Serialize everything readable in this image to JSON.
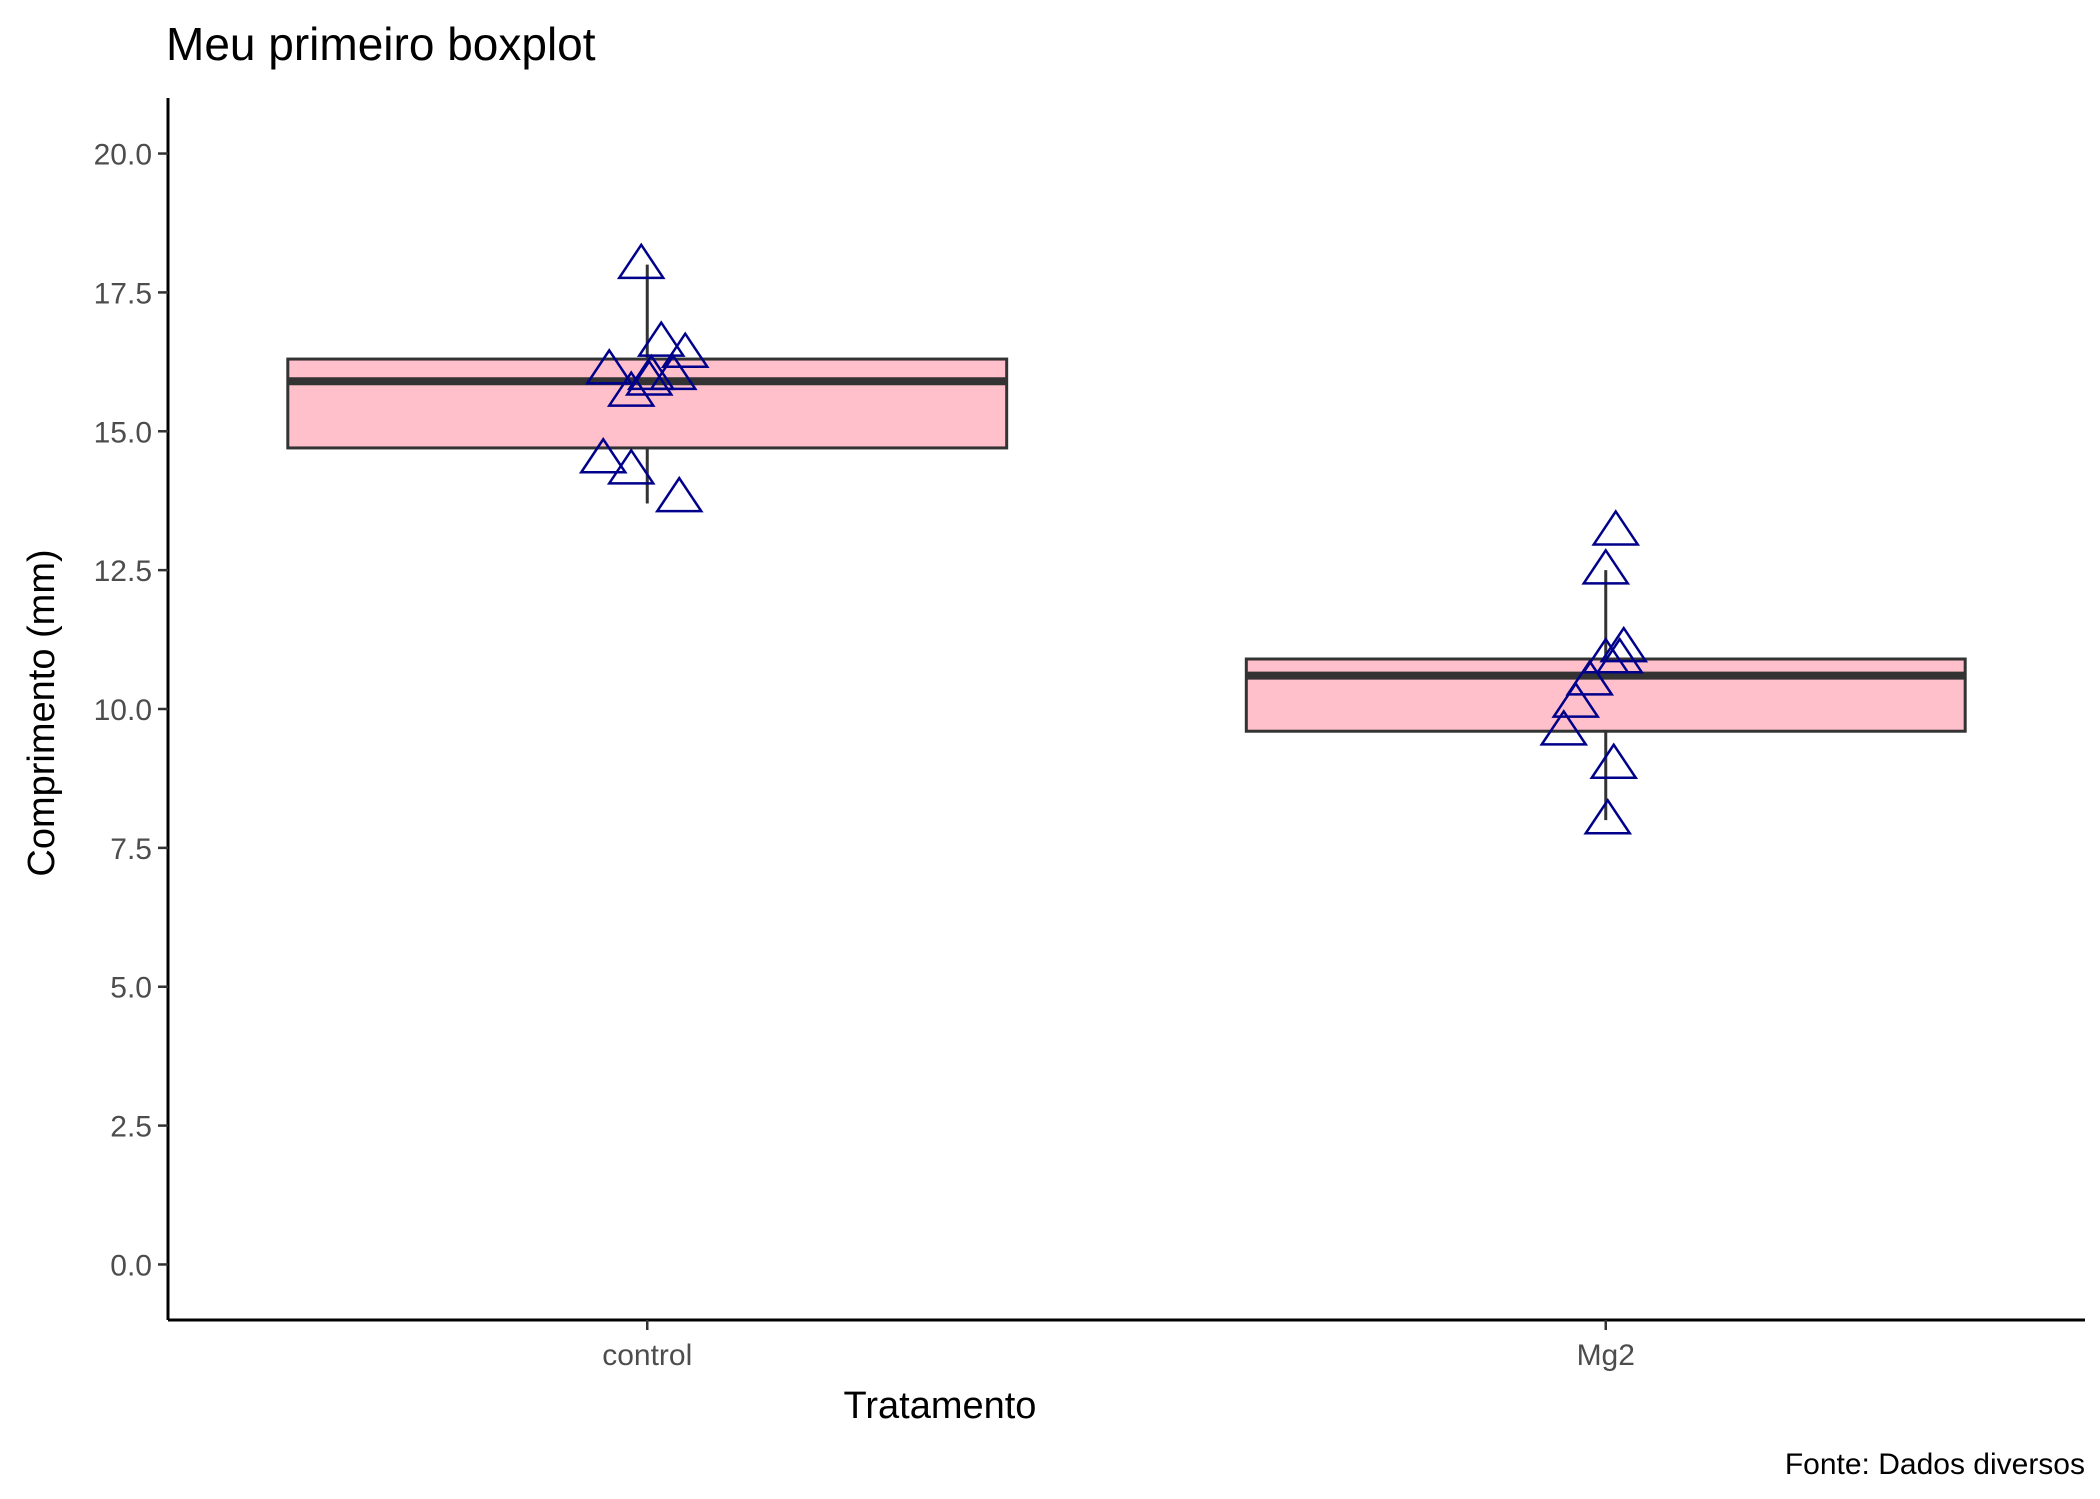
{
  "chart_data": {
    "type": "boxplot",
    "title": "Meu primeiro boxplot",
    "xlabel": "Tratamento",
    "ylabel": "Comprimento (mm)",
    "caption": "Fonte: Dados diversos",
    "ylim": [
      -1.0,
      21.0
    ],
    "yticks": [
      0.0,
      2.5,
      5.0,
      7.5,
      10.0,
      12.5,
      15.0,
      17.5,
      20.0
    ],
    "ytick_labels": [
      "0.0",
      "2.5",
      "5.0",
      "7.5",
      "10.0",
      "12.5",
      "15.0",
      "17.5",
      "20.0"
    ],
    "categories": [
      "control",
      "Mg2"
    ],
    "grid": false,
    "colors": {
      "box_fill": "#ffc0cb",
      "box_line": "#333333",
      "points": "#00008b"
    },
    "boxes": [
      {
        "category": "control",
        "min": 13.7,
        "q1": 14.7,
        "median": 15.9,
        "q3": 16.3,
        "max": 18.0
      },
      {
        "category": "Mg2",
        "min": 8.0,
        "q1": 9.6,
        "median": 10.6,
        "q3": 10.9,
        "max": 12.5
      }
    ],
    "points": [
      {
        "category": "control",
        "y": [
          18.0,
          16.6,
          16.4,
          16.1,
          16.0,
          16.0,
          15.9,
          15.7,
          14.5,
          14.3,
          13.8
        ]
      },
      {
        "category": "Mg2",
        "y": [
          13.2,
          12.5,
          11.1,
          10.9,
          10.9,
          10.5,
          10.1,
          9.6,
          9.0,
          8.0
        ]
      }
    ]
  }
}
